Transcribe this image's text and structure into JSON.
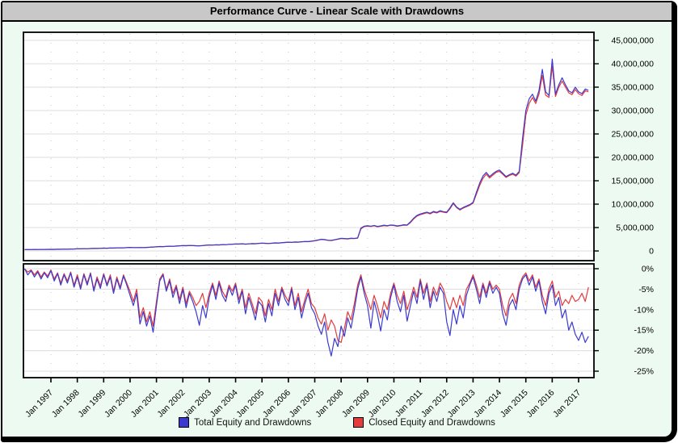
{
  "window": {
    "title": "Performance Curve - Linear Scale with Drawdowns"
  },
  "colors": {
    "background": "#edfaf1",
    "titlebar": "#c8c8c8",
    "plot_background": "#ffffff",
    "grid_solid": "#dcdcdc",
    "grid_dotted": "#c4c4c4",
    "total_blue": "#3a3ad0",
    "closed_red": "#e43b3b"
  },
  "legend": [
    {
      "label": "Total Equity and Drawdowns",
      "color": "#3a3ad0"
    },
    {
      "label": "Closed Equity and Drawdowns",
      "color": "#e43b3b"
    }
  ],
  "chart_data": {
    "type": "line",
    "title": "Performance Curve - Linear Scale with Drawdowns",
    "grid": true,
    "legend_position": "bottom",
    "x_axis": {
      "labels": [
        "Jan 1997",
        "Jan 1998",
        "Jan 1999",
        "Jan 2000",
        "Jan 2001",
        "Jan 2002",
        "Jan 2003",
        "Jan 2004",
        "Jan 2005",
        "Jan 2006",
        "Jan 2007",
        "Jan 2008",
        "Jan 2009",
        "Jan 2010",
        "Jan 2011",
        "Jan 2012",
        "Jan 2013",
        "Jan 2014",
        "Jan 2015",
        "Jan 2016",
        "Jan 2017"
      ],
      "values": [
        1997,
        1998,
        1999,
        2000,
        2001,
        2002,
        2003,
        2004,
        2005,
        2006,
        2007,
        2008,
        2009,
        2010,
        2011,
        2012,
        2013,
        2014,
        2015,
        2016,
        2017
      ],
      "xlim": [
        1995.95,
        2017.55
      ]
    },
    "panels": [
      {
        "name": "equity",
        "side": "right",
        "ylim_millions": [
          -2.1,
          47.0
        ],
        "ticks": [
          {
            "label": "45,000,000",
            "value": 45
          },
          {
            "label": "40,000,000",
            "value": 40
          },
          {
            "label": "35,000,000",
            "value": 35
          },
          {
            "label": "30,000,000",
            "value": 30
          },
          {
            "label": "25,000,000",
            "value": 25
          },
          {
            "label": "20,000,000",
            "value": 20
          },
          {
            "label": "15,000,000",
            "value": 15
          },
          {
            "label": "10,000,000",
            "value": 10
          },
          {
            "label": "5,000,000",
            "value": 5
          },
          {
            "label": "0",
            "value": 0
          }
        ]
      },
      {
        "name": "drawdown",
        "side": "right",
        "ylim_percent": [
          1.2,
          -26.5
        ],
        "ticks": [
          {
            "label": "0%",
            "value": 0
          },
          {
            "label": "-5%",
            "value": -5
          },
          {
            "label": "-10%",
            "value": -10
          },
          {
            "label": "-15%",
            "value": -15
          },
          {
            "label": "-20%",
            "value": -20
          },
          {
            "label": "-25%",
            "value": -25
          }
        ]
      }
    ],
    "x_start": 1996.0,
    "x_step": 0.125,
    "series": [
      {
        "name": "Total Equity",
        "panel": "equity",
        "color": "#3a3ad0",
        "unit": "millions_usd",
        "values": [
          0.3,
          0.31,
          0.3,
          0.32,
          0.31,
          0.33,
          0.32,
          0.34,
          0.35,
          0.34,
          0.37,
          0.36,
          0.39,
          0.38,
          0.41,
          0.43,
          0.46,
          0.45,
          0.49,
          0.48,
          0.52,
          0.54,
          0.53,
          0.57,
          0.6,
          0.59,
          0.63,
          0.62,
          0.66,
          0.68,
          0.67,
          0.72,
          0.75,
          0.73,
          0.71,
          0.74,
          0.72,
          0.76,
          0.8,
          0.85,
          0.9,
          0.95,
          0.93,
          0.98,
          1.02,
          1.0,
          1.06,
          1.1,
          1.15,
          1.13,
          1.18,
          1.16,
          1.12,
          1.1,
          1.16,
          1.22,
          1.28,
          1.26,
          1.32,
          1.3,
          1.37,
          1.35,
          1.42,
          1.45,
          1.5,
          1.48,
          1.53,
          1.47,
          1.52,
          1.57,
          1.55,
          1.62,
          1.68,
          1.64,
          1.6,
          1.66,
          1.72,
          1.7,
          1.77,
          1.82,
          1.88,
          1.85,
          1.92,
          1.9,
          1.97,
          2.02,
          2.0,
          2.1,
          2.2,
          2.35,
          2.5,
          2.45,
          2.3,
          2.25,
          2.4,
          2.55,
          2.7,
          2.65,
          2.6,
          2.72,
          2.68,
          2.8,
          4.9,
          5.3,
          5.4,
          5.3,
          5.45,
          5.25,
          5.35,
          5.5,
          5.4,
          5.55,
          5.5,
          5.35,
          5.45,
          5.6,
          5.55,
          6.2,
          7.0,
          7.6,
          7.9,
          8.1,
          8.3,
          8.05,
          8.45,
          8.25,
          8.6,
          8.4,
          8.3,
          9.2,
          10.3,
          9.4,
          8.9,
          9.3,
          9.6,
          9.9,
          10.4,
          12.5,
          14.5,
          16.0,
          16.8,
          15.9,
          16.5,
          17.0,
          17.3,
          16.6,
          15.9,
          16.3,
          16.6,
          16.2,
          17.0,
          24.0,
          30.0,
          32.5,
          33.5,
          32.0,
          34.3,
          38.8,
          34.0,
          33.2,
          41.0,
          33.5,
          35.5,
          37.0,
          35.5,
          34.2,
          33.8,
          35.0,
          34.0,
          33.6,
          34.6,
          34.3
        ]
      },
      {
        "name": "Closed Equity",
        "panel": "equity",
        "color": "#e43b3b",
        "unit": "millions_usd",
        "values": [
          0.3,
          0.3,
          0.29,
          0.31,
          0.3,
          0.32,
          0.31,
          0.33,
          0.34,
          0.33,
          0.36,
          0.35,
          0.38,
          0.37,
          0.4,
          0.42,
          0.45,
          0.44,
          0.48,
          0.47,
          0.51,
          0.53,
          0.52,
          0.56,
          0.59,
          0.58,
          0.62,
          0.61,
          0.65,
          0.67,
          0.66,
          0.71,
          0.74,
          0.72,
          0.7,
          0.73,
          0.71,
          0.75,
          0.79,
          0.84,
          0.89,
          0.93,
          0.91,
          0.96,
          1.0,
          0.98,
          1.04,
          1.08,
          1.13,
          1.11,
          1.16,
          1.14,
          1.1,
          1.08,
          1.14,
          1.2,
          1.26,
          1.24,
          1.3,
          1.28,
          1.35,
          1.33,
          1.4,
          1.43,
          1.48,
          1.46,
          1.51,
          1.45,
          1.5,
          1.55,
          1.53,
          1.6,
          1.66,
          1.62,
          1.58,
          1.64,
          1.7,
          1.68,
          1.75,
          1.8,
          1.86,
          1.83,
          1.9,
          1.88,
          1.95,
          2.0,
          1.98,
          2.07,
          2.15,
          2.3,
          2.44,
          2.4,
          2.26,
          2.21,
          2.36,
          2.5,
          2.64,
          2.6,
          2.56,
          2.67,
          2.63,
          2.75,
          4.7,
          5.2,
          5.3,
          5.22,
          5.38,
          5.18,
          5.28,
          5.42,
          5.33,
          5.48,
          5.43,
          5.28,
          5.38,
          5.52,
          5.48,
          6.05,
          6.85,
          7.45,
          7.75,
          7.95,
          8.15,
          7.92,
          8.3,
          8.12,
          8.45,
          8.28,
          8.18,
          9.0,
          10.1,
          9.25,
          8.75,
          9.15,
          9.45,
          9.75,
          10.2,
          12.1,
          14.0,
          15.5,
          16.4,
          15.6,
          16.2,
          16.8,
          17.0,
          16.4,
          15.7,
          16.1,
          16.4,
          16.0,
          16.7,
          22.5,
          29.0,
          31.5,
          32.8,
          31.5,
          33.5,
          37.5,
          33.3,
          32.8,
          39.5,
          33.0,
          35.0,
          36.3,
          35.0,
          33.8,
          33.4,
          34.5,
          33.6,
          33.2,
          34.2,
          34.0
        ]
      },
      {
        "name": "Total Equity Drawdown",
        "panel": "drawdown",
        "color": "#3a3ad0",
        "unit": "percent",
        "values": [
          0.0,
          -1.5,
          -0.5,
          -2.0,
          -0.8,
          -2.5,
          -1.0,
          -2.2,
          -0.5,
          -3.0,
          -1.2,
          -4.0,
          -1.5,
          -3.5,
          -1.0,
          -4.5,
          -2.0,
          -5.0,
          -1.5,
          -4.0,
          -1.2,
          -5.5,
          -2.5,
          -4.8,
          -1.5,
          -4.2,
          -2.0,
          -6.0,
          -2.5,
          -5.0,
          -1.8,
          -4.0,
          -6.5,
          -9.0,
          -6.0,
          -13.5,
          -10.5,
          -14.0,
          -11.5,
          -15.5,
          -9.0,
          -3.0,
          -1.5,
          -5.5,
          -3.0,
          -7.0,
          -4.5,
          -8.5,
          -5.0,
          -9.5,
          -6.0,
          -8.0,
          -10.5,
          -13.8,
          -9.0,
          -12.0,
          -7.0,
          -4.0,
          -7.5,
          -3.5,
          -6.5,
          -8.0,
          -4.5,
          -6.5,
          -4.0,
          -8.5,
          -5.5,
          -11.0,
          -7.0,
          -9.5,
          -12.5,
          -8.0,
          -9.0,
          -13.0,
          -8.5,
          -11.5,
          -6.0,
          -9.0,
          -5.0,
          -7.5,
          -9.0,
          -5.0,
          -10.0,
          -7.0,
          -12.0,
          -8.5,
          -6.0,
          -9.5,
          -11.0,
          -14.0,
          -16.0,
          -13.0,
          -18.0,
          -21.3,
          -17.0,
          -19.0,
          -14.0,
          -16.5,
          -12.0,
          -14.5,
          -10.0,
          -5.0,
          -2.0,
          -6.0,
          -9.0,
          -14.5,
          -8.0,
          -11.0,
          -15.2,
          -10.0,
          -12.5,
          -7.0,
          -4.0,
          -8.0,
          -10.5,
          -6.5,
          -12.8,
          -9.0,
          -5.5,
          -8.5,
          -3.0,
          -7.5,
          -4.0,
          -9.5,
          -5.5,
          -8.0,
          -4.5,
          -6.0,
          -13.0,
          -16.3,
          -10.0,
          -13.5,
          -9.0,
          -12.0,
          -6.5,
          -4.0,
          -2.0,
          -5.0,
          -8.5,
          -4.0,
          -7.0,
          -3.5,
          -6.0,
          -4.5,
          -6.0,
          -11.0,
          -13.8,
          -9.0,
          -7.5,
          -10.0,
          -5.0,
          -2.5,
          -1.5,
          -4.0,
          -2.0,
          -5.5,
          -3.0,
          -8.0,
          -11.0,
          -6.0,
          -4.0,
          -9.0,
          -7.0,
          -12.0,
          -10.0,
          -15.0,
          -13.0,
          -16.0,
          -17.5,
          -15.5,
          -18.0,
          -16.5
        ]
      },
      {
        "name": "Closed Equity Drawdown",
        "panel": "drawdown",
        "color": "#e43b3b",
        "unit": "percent",
        "values": [
          0.0,
          -0.8,
          -0.3,
          -1.5,
          -0.5,
          -2.0,
          -0.8,
          -1.8,
          -0.3,
          -2.5,
          -1.0,
          -3.5,
          -1.2,
          -3.0,
          -0.8,
          -4.0,
          -1.5,
          -4.5,
          -1.2,
          -3.5,
          -1.0,
          -5.0,
          -2.0,
          -4.2,
          -1.2,
          -3.8,
          -1.5,
          -5.5,
          -2.0,
          -4.5,
          -1.5,
          -3.5,
          -5.5,
          -8.0,
          -5.0,
          -12.0,
          -9.5,
          -13.0,
          -10.5,
          -14.0,
          -8.0,
          -2.5,
          -1.2,
          -5.0,
          -2.5,
          -6.0,
          -4.0,
          -7.5,
          -4.5,
          -8.5,
          -5.5,
          -7.0,
          -9.0,
          -8.0,
          -6.0,
          -9.5,
          -6.0,
          -3.5,
          -6.5,
          -3.0,
          -5.5,
          -7.0,
          -4.0,
          -5.5,
          -3.5,
          -7.5,
          -5.0,
          -9.5,
          -6.0,
          -8.5,
          -11.0,
          -7.0,
          -8.0,
          -11.5,
          -7.5,
          -10.0,
          -5.0,
          -8.0,
          -4.5,
          -6.5,
          -8.0,
          -4.5,
          -9.0,
          -6.0,
          -10.5,
          -7.5,
          -5.0,
          -8.5,
          -9.5,
          -12.0,
          -13.5,
          -11.0,
          -15.0,
          -12.5,
          -14.0,
          -17.5,
          -18.0,
          -14.5,
          -10.5,
          -12.5,
          -8.5,
          -4.0,
          -1.5,
          -5.0,
          -7.5,
          -10.0,
          -6.5,
          -9.0,
          -12.0,
          -8.0,
          -10.0,
          -6.0,
          -3.5,
          -6.5,
          -8.5,
          -5.5,
          -10.0,
          -7.5,
          -4.5,
          -7.0,
          -2.5,
          -6.0,
          -3.5,
          -8.0,
          -4.5,
          -6.5,
          -3.5,
          -5.0,
          -8.0,
          -10.0,
          -7.0,
          -9.5,
          -6.5,
          -9.0,
          -5.0,
          -3.5,
          -1.5,
          -4.0,
          -7.0,
          -3.5,
          -6.0,
          -3.0,
          -5.0,
          -4.0,
          -5.0,
          -9.0,
          -11.5,
          -7.5,
          -6.0,
          -8.5,
          -4.0,
          -2.0,
          -1.0,
          -3.0,
          -1.5,
          -4.5,
          -2.5,
          -6.5,
          -9.0,
          -5.0,
          -3.0,
          -7.0,
          -5.5,
          -9.0,
          -7.5,
          -8.5,
          -6.5,
          -8.0,
          -7.5,
          -6.0,
          -8.0,
          -4.5
        ]
      }
    ]
  }
}
